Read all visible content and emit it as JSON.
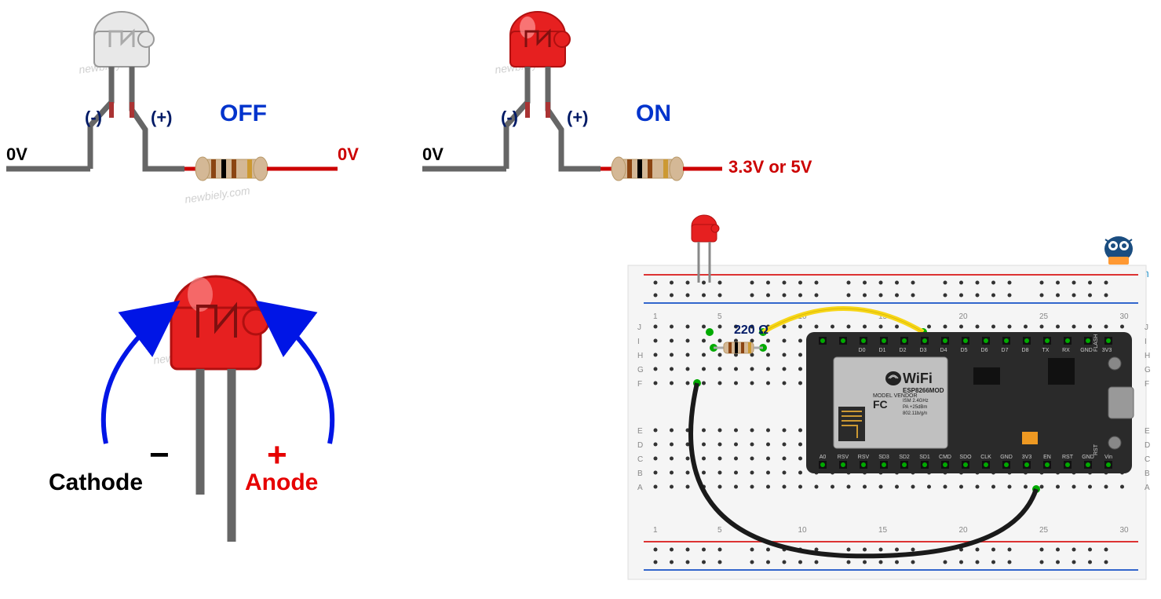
{
  "off_circuit": {
    "state_label": "OFF",
    "neg_label": "(-)",
    "pos_label": "(+)",
    "left_voltage": "0V",
    "right_voltage": "0V",
    "state_color": "#0033cc",
    "polarity_color": "#001a66",
    "led_color": "#e8e8e8",
    "led_outline": "#999999",
    "wire_gray": "#666666",
    "wire_red": "#cc0000",
    "resistor_body": "#d4b896",
    "resistor_bands": [
      "#8b4513",
      "#000000",
      "#8b4513",
      "#cc9933"
    ]
  },
  "on_circuit": {
    "state_label": "ON",
    "neg_label": "(-)",
    "pos_label": "(+)",
    "left_voltage": "0V",
    "right_voltage": "3.3V or 5V",
    "state_color": "#0033cc",
    "led_color": "#e62020",
    "led_highlight": "#ff6666"
  },
  "pinout": {
    "cathode_label": "Cathode",
    "anode_label": "Anode",
    "minus_symbol": "−",
    "plus_symbol": "+",
    "cathode_color": "#000000",
    "anode_color": "#e60000",
    "arrow_color": "#0015e6",
    "led_color": "#e62020"
  },
  "breadboard": {
    "resistor_label": "220 Ω",
    "resistor_label_color": "#001a66",
    "board_bg": "#f5f5f5",
    "rail_red": "#dd3333",
    "rail_blue": "#3366cc",
    "wire_yellow": "#f7d617",
    "wire_black": "#1a1a1a",
    "wire_green": "#005500",
    "mcu_bg": "#2a2a2a",
    "mcu_shield": "#c0c0c0",
    "wifi_label": "WiFi",
    "chip_label": "ESP8266MOD",
    "vendor_label": "MODEL VENDOR",
    "fcc_label": "FC",
    "specs": "ISM 2.4GHz\nPA +25dBm\n802.11b/g/n",
    "top_pins": [
      "D0",
      "D1",
      "D2",
      "D3",
      "D4",
      "D5",
      "D6",
      "D7",
      "D8",
      "TX",
      "RX",
      "GND",
      "3V3"
    ],
    "bottom_pins": [
      "A0",
      "RSV",
      "RSV",
      "SD3",
      "SD2",
      "SD1",
      "CMD",
      "SDO",
      "CLK",
      "GND",
      "3V3",
      "EN",
      "RST",
      "GND",
      "Vin"
    ],
    "flash_label": "FLASH",
    "rst_label": "RST",
    "col_numbers": [
      "1",
      "5",
      "10",
      "15",
      "20",
      "25",
      "30"
    ],
    "row_letters_top": [
      "J",
      "I",
      "H",
      "G",
      "F"
    ],
    "row_letters_bot": [
      "E",
      "D",
      "C",
      "B",
      "A"
    ]
  },
  "brand": {
    "name": "newbiely.com",
    "color": "#3399cc",
    "owl_bg": "#1a4d80",
    "owl_eye": "#ffffff",
    "owl_beak": "#ff9933"
  },
  "watermark_text": "newbiely.com"
}
